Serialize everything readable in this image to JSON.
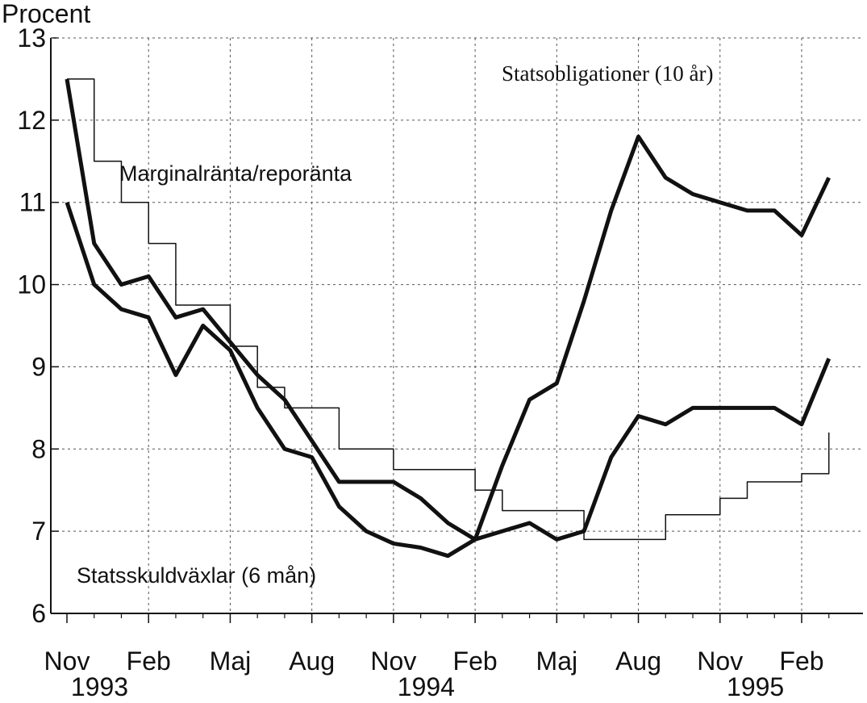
{
  "chart_data": {
    "type": "line",
    "y_label": "Procent",
    "categories": [
      "Nov",
      null,
      null,
      "Feb",
      null,
      null,
      "Maj",
      null,
      null,
      "Aug",
      null,
      null,
      "Nov",
      null,
      null,
      "Feb",
      null,
      null,
      "Maj",
      null,
      null,
      "Aug",
      null,
      null,
      "Nov",
      null,
      null,
      "Feb",
      null
    ],
    "year_labels": [
      "1993",
      "1994",
      "1995"
    ],
    "series": [
      {
        "name": "Statsobligationer (10 år)",
        "color": "#111111",
        "line_width": 5,
        "step": false,
        "values": [
          12.5,
          10.5,
          10.0,
          10.1,
          9.6,
          9.7,
          9.3,
          8.9,
          8.6,
          8.1,
          7.6,
          7.6,
          7.6,
          7.4,
          7.1,
          6.9,
          7.8,
          8.6,
          8.8,
          9.8,
          10.9,
          11.8,
          11.3,
          11.1,
          11.0,
          10.9,
          10.9,
          10.6,
          11.3
        ]
      },
      {
        "name": "Marginalränta/reporänta",
        "color": "#111111",
        "line_width": 1.5,
        "step": true,
        "values": [
          12.5,
          11.5,
          11.0,
          10.5,
          9.75,
          9.75,
          9.25,
          8.75,
          8.5,
          8.5,
          8.0,
          8.0,
          7.75,
          7.75,
          7.75,
          7.5,
          7.25,
          7.25,
          7.25,
          6.9,
          6.9,
          6.9,
          7.2,
          7.2,
          7.4,
          7.6,
          7.6,
          7.7,
          8.2
        ]
      },
      {
        "name": "Statsskuldväxlar (6 mån)",
        "color": "#111111",
        "line_width": 5,
        "step": false,
        "values": [
          11.0,
          10.0,
          9.7,
          9.6,
          8.9,
          9.5,
          9.2,
          8.5,
          8.0,
          7.9,
          7.3,
          7.0,
          6.85,
          6.8,
          6.7,
          6.9,
          7.0,
          7.1,
          6.9,
          7.0,
          7.9,
          8.4,
          8.3,
          8.5,
          8.5,
          8.5,
          8.5,
          8.3,
          9.1
        ]
      }
    ],
    "ylim": [
      6,
      13
    ],
    "yticks": [
      6,
      7,
      8,
      9,
      10,
      11,
      12,
      13
    ],
    "grid": true
  }
}
